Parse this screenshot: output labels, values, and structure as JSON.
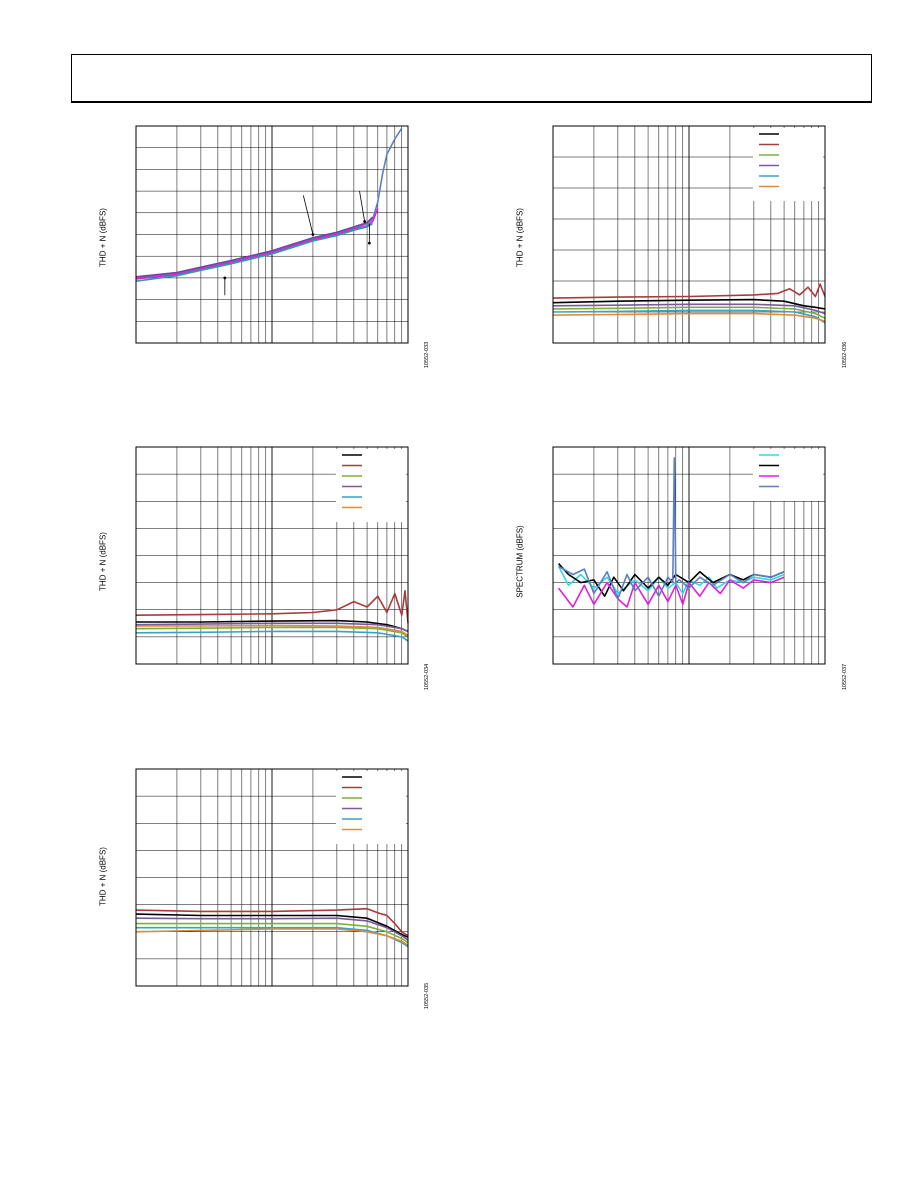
{
  "header": {},
  "chart_data": [
    {
      "id": "c1",
      "type": "line",
      "ylabel": "THD + N (dBFS)",
      "fig_id": "10552-033",
      "x_scale": "log",
      "xlim": [
        1,
        100
      ],
      "ylim": [
        0,
        10
      ],
      "grid": true,
      "series": [
        {
          "color": "#5b7fc0",
          "x": [
            1,
            2,
            3,
            5,
            10,
            20,
            30,
            40,
            50,
            55,
            60,
            65,
            70,
            80,
            90
          ],
          "y": [
            3.0,
            3.2,
            3.45,
            3.75,
            4.2,
            4.8,
            5.05,
            5.3,
            5.5,
            5.7,
            6.5,
            7.8,
            8.7,
            9.4,
            9.9
          ]
        },
        {
          "color": "#e020e0",
          "x": [
            1,
            2,
            3,
            5,
            10,
            20,
            30,
            40,
            50,
            55,
            60
          ],
          "y": [
            2.95,
            3.15,
            3.4,
            3.7,
            4.15,
            4.75,
            5.0,
            5.25,
            5.4,
            5.6,
            6.2
          ]
        },
        {
          "color": "#7a3fa0",
          "x": [
            1,
            2,
            3,
            5,
            10,
            20,
            30,
            40,
            50,
            55
          ],
          "y": [
            3.05,
            3.25,
            3.5,
            3.8,
            4.25,
            4.85,
            5.1,
            5.35,
            5.55,
            5.8
          ]
        },
        {
          "color": "#2aa0a8",
          "x": [
            1,
            2,
            3,
            5,
            10,
            20,
            30,
            40,
            50,
            55
          ],
          "y": [
            2.85,
            3.1,
            3.35,
            3.65,
            4.1,
            4.7,
            4.95,
            5.2,
            5.35,
            5.5
          ]
        }
      ],
      "annotations": [
        {
          "x": 20,
          "y": 5.0,
          "text": "",
          "tx": 17,
          "ty": 6.8
        },
        {
          "x": 4.5,
          "y": 3.0,
          "text": "",
          "tx": 4.5,
          "ty": 2.2
        },
        {
          "x": 48,
          "y": 5.6,
          "text": "",
          "tx": 44,
          "ty": 7.0
        },
        {
          "x": 52,
          "y": 4.6,
          "text": "",
          "tx": 52,
          "ty": 5.5
        }
      ]
    },
    {
      "id": "c2",
      "type": "line",
      "ylabel": "THD + N (dBFS)",
      "fig_id": "10552-036",
      "x_scale": "log",
      "xlim": [
        1,
        100
      ],
      "ylim": [
        0,
        7
      ],
      "grid": true,
      "legend": {
        "placement": "top-right",
        "entries": [
          {
            "name": "",
            "color": "#000000"
          },
          {
            "name": "",
            "color": "#a83c3c"
          },
          {
            "name": "",
            "color": "#7ab040"
          },
          {
            "name": "",
            "color": "#7a5a9a"
          },
          {
            "name": "",
            "color": "#3aa0c8"
          },
          {
            "name": "",
            "color": "#e08a3a"
          }
        ]
      },
      "series": [
        {
          "color": "#000000",
          "x": [
            1,
            3,
            10,
            30,
            50,
            70,
            85,
            100
          ],
          "y": [
            1.3,
            1.35,
            1.38,
            1.4,
            1.35,
            1.2,
            1.15,
            1.1
          ]
        },
        {
          "color": "#a83c3c",
          "x": [
            1,
            3,
            10,
            30,
            45,
            55,
            65,
            75,
            85,
            92,
            100
          ],
          "y": [
            1.45,
            1.48,
            1.5,
            1.55,
            1.6,
            1.75,
            1.55,
            1.8,
            1.5,
            1.9,
            1.5
          ]
        },
        {
          "color": "#7ab040",
          "x": [
            1,
            3,
            10,
            30,
            60,
            85,
            100
          ],
          "y": [
            1.1,
            1.12,
            1.15,
            1.15,
            1.1,
            0.95,
            0.8
          ]
        },
        {
          "color": "#7a5a9a",
          "x": [
            1,
            3,
            10,
            30,
            60,
            85,
            100
          ],
          "y": [
            1.2,
            1.22,
            1.25,
            1.25,
            1.2,
            1.05,
            0.95
          ]
        },
        {
          "color": "#3aa0c8",
          "x": [
            1,
            3,
            10,
            30,
            60,
            85,
            100
          ],
          "y": [
            1.0,
            1.02,
            1.05,
            1.05,
            1.0,
            0.85,
            0.65
          ]
        },
        {
          "color": "#e08a3a",
          "x": [
            1,
            3,
            10,
            30,
            60,
            85,
            100
          ],
          "y": [
            0.9,
            0.92,
            0.95,
            0.95,
            0.9,
            0.8,
            0.7
          ]
        }
      ]
    },
    {
      "id": "c3",
      "type": "line",
      "ylabel": "THD + N (dBFS)",
      "fig_id": "10552-034",
      "x_scale": "log",
      "xlim": [
        1,
        100
      ],
      "ylim": [
        0,
        8
      ],
      "grid": true,
      "legend": {
        "placement": "top-right",
        "entries": [
          {
            "name": "",
            "color": "#000000"
          },
          {
            "name": "",
            "color": "#a83c3c"
          },
          {
            "name": "",
            "color": "#7ab040"
          },
          {
            "name": "",
            "color": "#7a5a9a"
          },
          {
            "name": "",
            "color": "#3aa0c8"
          },
          {
            "name": "",
            "color": "#e08a3a"
          }
        ]
      },
      "series": [
        {
          "color": "#000000",
          "x": [
            1,
            3,
            10,
            30,
            50,
            70,
            90,
            100
          ],
          "y": [
            1.55,
            1.55,
            1.58,
            1.6,
            1.55,
            1.45,
            1.3,
            1.2
          ]
        },
        {
          "color": "#a83c3c",
          "x": [
            1,
            3,
            10,
            20,
            30,
            40,
            50,
            60,
            70,
            80,
            90,
            95,
            100
          ],
          "y": [
            1.8,
            1.82,
            1.85,
            1.9,
            2.0,
            2.3,
            2.1,
            2.5,
            1.9,
            2.6,
            1.8,
            2.7,
            1.5
          ]
        },
        {
          "color": "#7ab040",
          "x": [
            1,
            3,
            10,
            30,
            60,
            90,
            100
          ],
          "y": [
            1.3,
            1.32,
            1.35,
            1.35,
            1.3,
            1.15,
            1.0
          ]
        },
        {
          "color": "#7a5a9a",
          "x": [
            1,
            3,
            10,
            30,
            60,
            90,
            100
          ],
          "y": [
            1.45,
            1.47,
            1.5,
            1.5,
            1.45,
            1.3,
            1.2
          ]
        },
        {
          "color": "#3aa0c8",
          "x": [
            1,
            3,
            10,
            30,
            60,
            90,
            100
          ],
          "y": [
            1.15,
            1.17,
            1.2,
            1.2,
            1.15,
            1.0,
            0.85
          ]
        },
        {
          "color": "#e08a3a",
          "x": [
            1,
            3,
            10,
            30,
            60,
            90,
            100
          ],
          "y": [
            1.4,
            1.4,
            1.42,
            1.4,
            1.35,
            1.2,
            1.05
          ]
        }
      ]
    },
    {
      "id": "c4",
      "type": "line",
      "ylabel": "SPECTRUM (dBFS)",
      "fig_id": "10552-037",
      "x_scale": "log",
      "xlim": [
        1,
        100
      ],
      "ylim": [
        0,
        8
      ],
      "grid": true,
      "legend": {
        "placement": "top-right",
        "entries": [
          {
            "name": "",
            "color": "#30d8e8"
          },
          {
            "name": "",
            "color": "#000000"
          },
          {
            "name": "",
            "color": "#e020e0"
          },
          {
            "name": "",
            "color": "#5b7fc0"
          }
        ]
      },
      "series": [
        {
          "color": "#30d8e8",
          "x": [
            1.1,
            1.3,
            1.6,
            2,
            2.5,
            3,
            4,
            5,
            6,
            7,
            8,
            9,
            10,
            12,
            14,
            16,
            20,
            25,
            30,
            40,
            50
          ],
          "y": [
            3.6,
            2.9,
            3.3,
            2.8,
            3.2,
            2.6,
            3.1,
            2.7,
            3.2,
            2.8,
            3.0,
            2.6,
            3.1,
            2.9,
            3.2,
            2.8,
            3.1,
            3.0,
            3.2,
            3.1,
            3.3
          ]
        },
        {
          "color": "#000000",
          "x": [
            1.1,
            1.3,
            1.6,
            2,
            2.4,
            2.8,
            3.3,
            4,
            5,
            6,
            7,
            8,
            10,
            12,
            15,
            20,
            25,
            30,
            40,
            50
          ],
          "y": [
            3.7,
            3.3,
            3.0,
            3.1,
            2.5,
            3.2,
            2.7,
            3.3,
            2.8,
            3.2,
            2.9,
            3.3,
            3.0,
            3.4,
            3.0,
            3.3,
            3.1,
            3.3,
            3.2,
            3.4
          ]
        },
        {
          "color": "#e020e0",
          "x": [
            1.1,
            1.4,
            1.7,
            2,
            2.5,
            3,
            3.5,
            4,
            5,
            6,
            7,
            8,
            9,
            10,
            12,
            14,
            17,
            20,
            25,
            30,
            40,
            50
          ],
          "y": [
            2.8,
            2.1,
            2.9,
            2.2,
            3.0,
            2.4,
            2.1,
            3.0,
            2.2,
            2.9,
            2.3,
            2.9,
            2.2,
            3.0,
            2.5,
            3.0,
            2.6,
            3.1,
            2.8,
            3.1,
            3.0,
            3.2
          ]
        },
        {
          "color": "#5b7fc0",
          "x": [
            1.1,
            1.4,
            1.7,
            2,
            2.5,
            3,
            3.5,
            4,
            5,
            6,
            7,
            7.6,
            7.8,
            8.0,
            8.5,
            10,
            12,
            15,
            20,
            25,
            30,
            40,
            50
          ],
          "y": [
            3.6,
            3.3,
            3.5,
            2.6,
            3.4,
            2.4,
            3.3,
            2.7,
            3.2,
            2.5,
            3.2,
            3.0,
            7.6,
            3.0,
            3.1,
            2.8,
            3.2,
            2.9,
            3.3,
            3.0,
            3.3,
            3.2,
            3.4
          ]
        }
      ]
    },
    {
      "id": "c5",
      "type": "line",
      "ylabel": "THD + N (dBFS)",
      "fig_id": "10552-035",
      "x_scale": "log",
      "xlim": [
        1,
        100
      ],
      "ylim": [
        0,
        8
      ],
      "grid": true,
      "legend": {
        "placement": "top-right",
        "entries": [
          {
            "name": "",
            "color": "#000000"
          },
          {
            "name": "",
            "color": "#a83c3c"
          },
          {
            "name": "",
            "color": "#7ab040"
          },
          {
            "name": "",
            "color": "#7a5a9a"
          },
          {
            "name": "",
            "color": "#3aa0c8"
          },
          {
            "name": "",
            "color": "#e08a3a"
          }
        ]
      },
      "series": [
        {
          "color": "#000000",
          "x": [
            1,
            3,
            10,
            30,
            50,
            70,
            90,
            100
          ],
          "y": [
            2.65,
            2.6,
            2.6,
            2.6,
            2.5,
            2.2,
            1.9,
            1.8
          ]
        },
        {
          "color": "#a83c3c",
          "x": [
            1,
            3,
            10,
            30,
            50,
            60,
            70,
            80,
            90,
            100
          ],
          "y": [
            2.8,
            2.75,
            2.75,
            2.8,
            2.85,
            2.7,
            2.6,
            2.3,
            2.0,
            1.85
          ]
        },
        {
          "color": "#7ab040",
          "x": [
            1,
            3,
            10,
            30,
            50,
            70,
            90,
            100
          ],
          "y": [
            2.3,
            2.3,
            2.3,
            2.3,
            2.2,
            2.0,
            1.75,
            1.6
          ]
        },
        {
          "color": "#7a5a9a",
          "x": [
            1,
            3,
            10,
            30,
            50,
            70,
            90,
            100
          ],
          "y": [
            2.5,
            2.48,
            2.48,
            2.5,
            2.4,
            2.15,
            1.85,
            1.7
          ]
        },
        {
          "color": "#3aa0c8",
          "x": [
            1,
            3,
            10,
            30,
            50,
            70,
            90,
            100
          ],
          "y": [
            2.15,
            2.15,
            2.15,
            2.15,
            2.05,
            1.85,
            1.6,
            1.45
          ]
        },
        {
          "color": "#e08a3a",
          "x": [
            1,
            3,
            10,
            30,
            50,
            70,
            90,
            100
          ],
          "y": [
            2.0,
            2.05,
            2.1,
            2.1,
            2.0,
            1.85,
            1.65,
            1.5
          ]
        }
      ]
    }
  ]
}
